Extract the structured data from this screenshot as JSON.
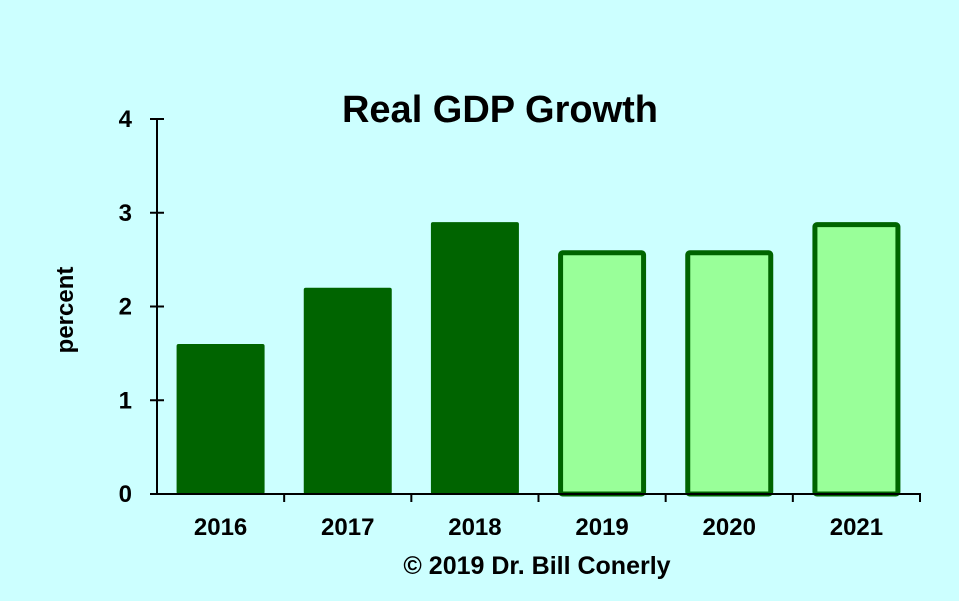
{
  "chart_data": {
    "type": "bar",
    "title": "Real GDP Growth",
    "xlabel": "",
    "ylabel": "percent",
    "ylim": [
      0,
      4
    ],
    "yticks": [
      "0",
      "1",
      "2",
      "3",
      "4"
    ],
    "categories": [
      "2016",
      "2017",
      "2018",
      "2019",
      "2020",
      "2021"
    ],
    "values": [
      1.6,
      2.2,
      2.9,
      2.6,
      2.6,
      2.9
    ],
    "kind": [
      "actual",
      "actual",
      "actual",
      "forecast",
      "forecast",
      "forecast"
    ],
    "grid": false,
    "colors": {
      "background": "#ccffff",
      "actual": "#006400",
      "forecast_fill": "#99ff99",
      "forecast_edge": "#006400"
    },
    "footer": "© 2019 Dr. Bill Conerly"
  }
}
